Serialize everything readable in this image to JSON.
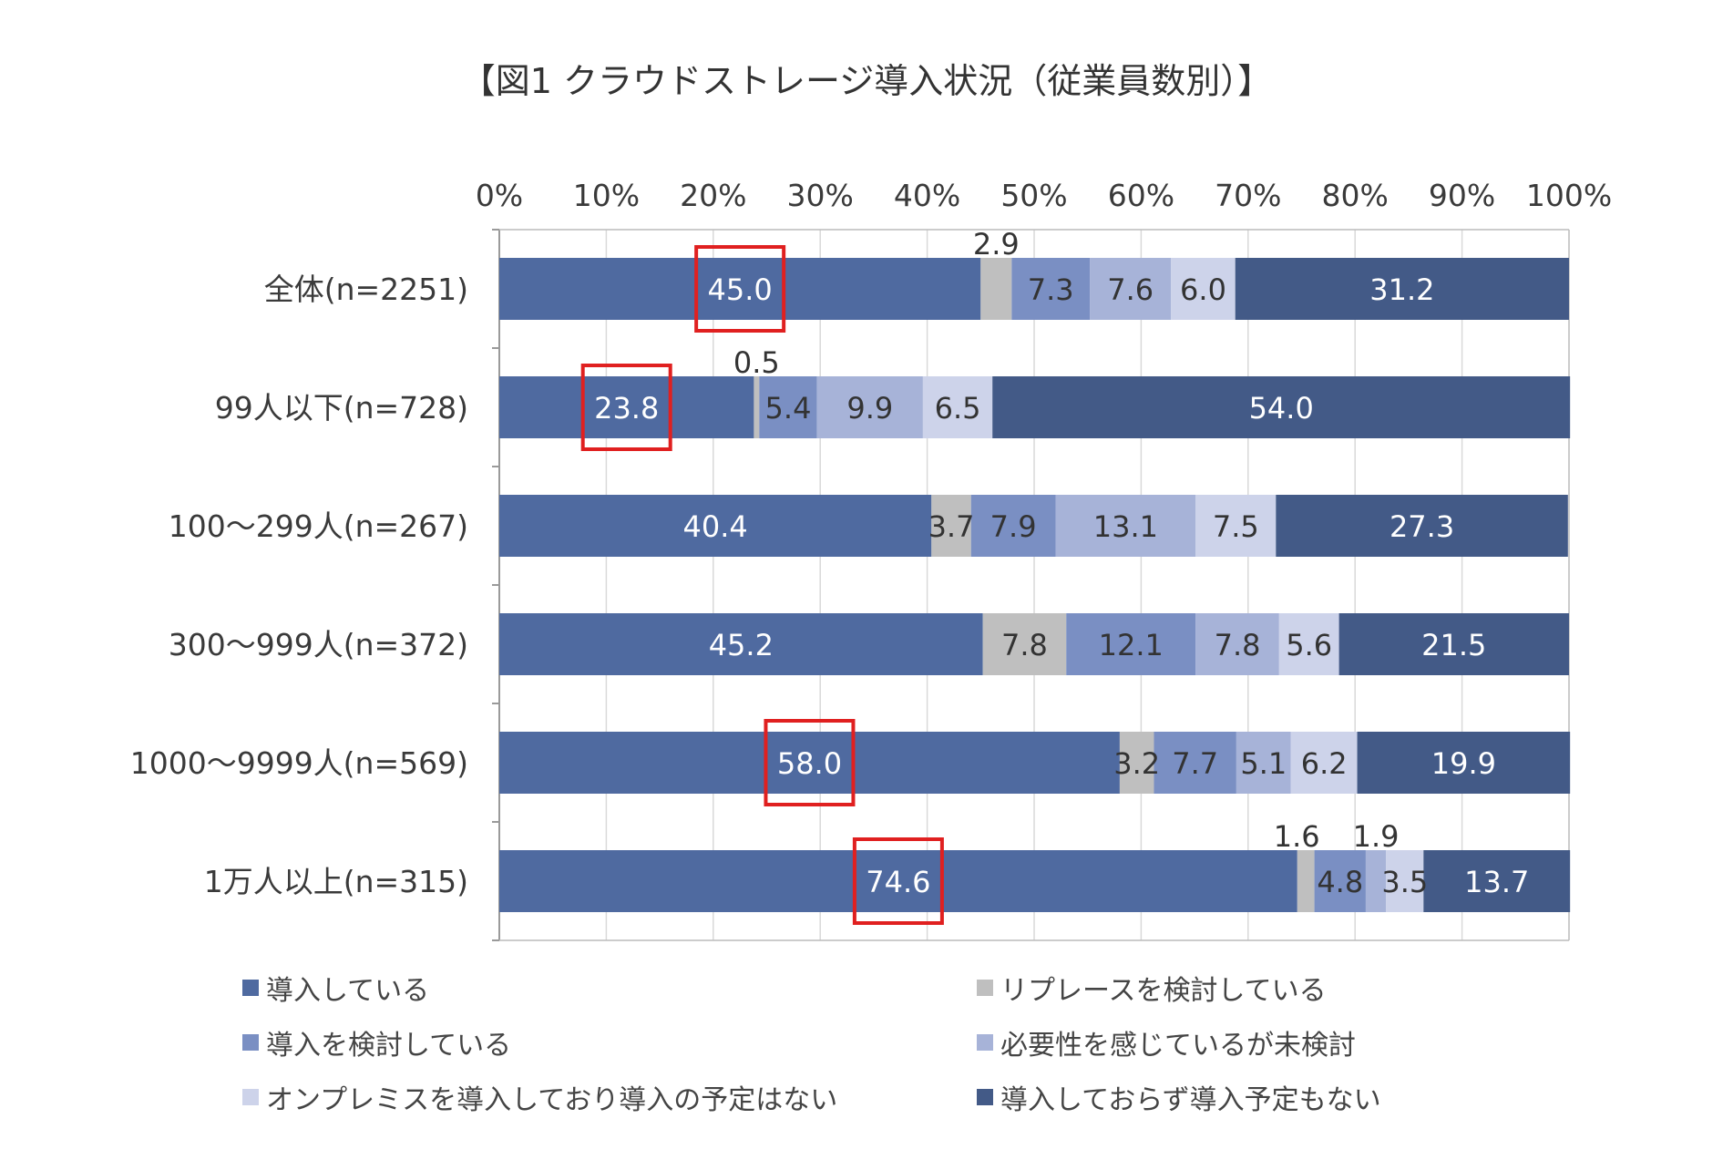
{
  "chart_data": {
    "type": "bar",
    "orientation": "horizontal",
    "stacked": true,
    "title": "【図1 クラウドストレージ導入状況（従業員数別）】",
    "xlabel": "",
    "ylabel": "",
    "xlim": [
      0,
      100
    ],
    "xticks": [
      "0%",
      "10%",
      "20%",
      "30%",
      "40%",
      "50%",
      "60%",
      "70%",
      "80%",
      "90%",
      "100%"
    ],
    "categories": [
      "全体(n=2251)",
      "99人以下(n=728)",
      "100～299人(n=267)",
      "300～999人(n=372)",
      "1000～9999人(n=569)",
      "1万人以上(n=315)"
    ],
    "series": [
      {
        "name": "導入している",
        "color": "#4f6aa0",
        "label_color": "#ffffff",
        "values": [
          45.0,
          23.8,
          40.4,
          45.2,
          58.0,
          74.6
        ]
      },
      {
        "name": "リプレースを検討している",
        "color": "#bfbfbf",
        "label_color": "#333333",
        "values": [
          2.9,
          0.5,
          3.7,
          7.8,
          3.2,
          1.6
        ]
      },
      {
        "name": "導入を検討している",
        "color": "#7a8fc3",
        "label_color": "#333333",
        "values": [
          7.3,
          5.4,
          7.9,
          12.1,
          7.7,
          4.8
        ]
      },
      {
        "name": "必要性を感じているが未検討",
        "color": "#a7b3d8",
        "label_color": "#333333",
        "values": [
          7.6,
          9.9,
          13.1,
          7.8,
          5.1,
          1.9
        ]
      },
      {
        "name": "オンプレミスを導入しており導入の予定はない",
        "color": "#cdd3ea",
        "label_color": "#333333",
        "values": [
          6.0,
          6.5,
          7.5,
          5.6,
          6.2,
          3.5
        ]
      },
      {
        "name": "導入しておらず導入予定もない",
        "color": "#435a87",
        "label_color": "#ffffff",
        "values": [
          31.2,
          54.0,
          27.3,
          21.5,
          19.9,
          13.7
        ]
      }
    ],
    "highlighted": [
      {
        "category": "全体(n=2251)",
        "series": "導入している",
        "value": 45.0
      },
      {
        "category": "99人以下(n=728)",
        "series": "導入している",
        "value": 23.8
      },
      {
        "category": "1000～9999人(n=569)",
        "series": "導入している",
        "value": 58.0
      },
      {
        "category": "1万人以上(n=315)",
        "series": "導入している",
        "value": 74.6
      }
    ],
    "highlight_color": "#e02020",
    "legend_position": "bottom"
  }
}
